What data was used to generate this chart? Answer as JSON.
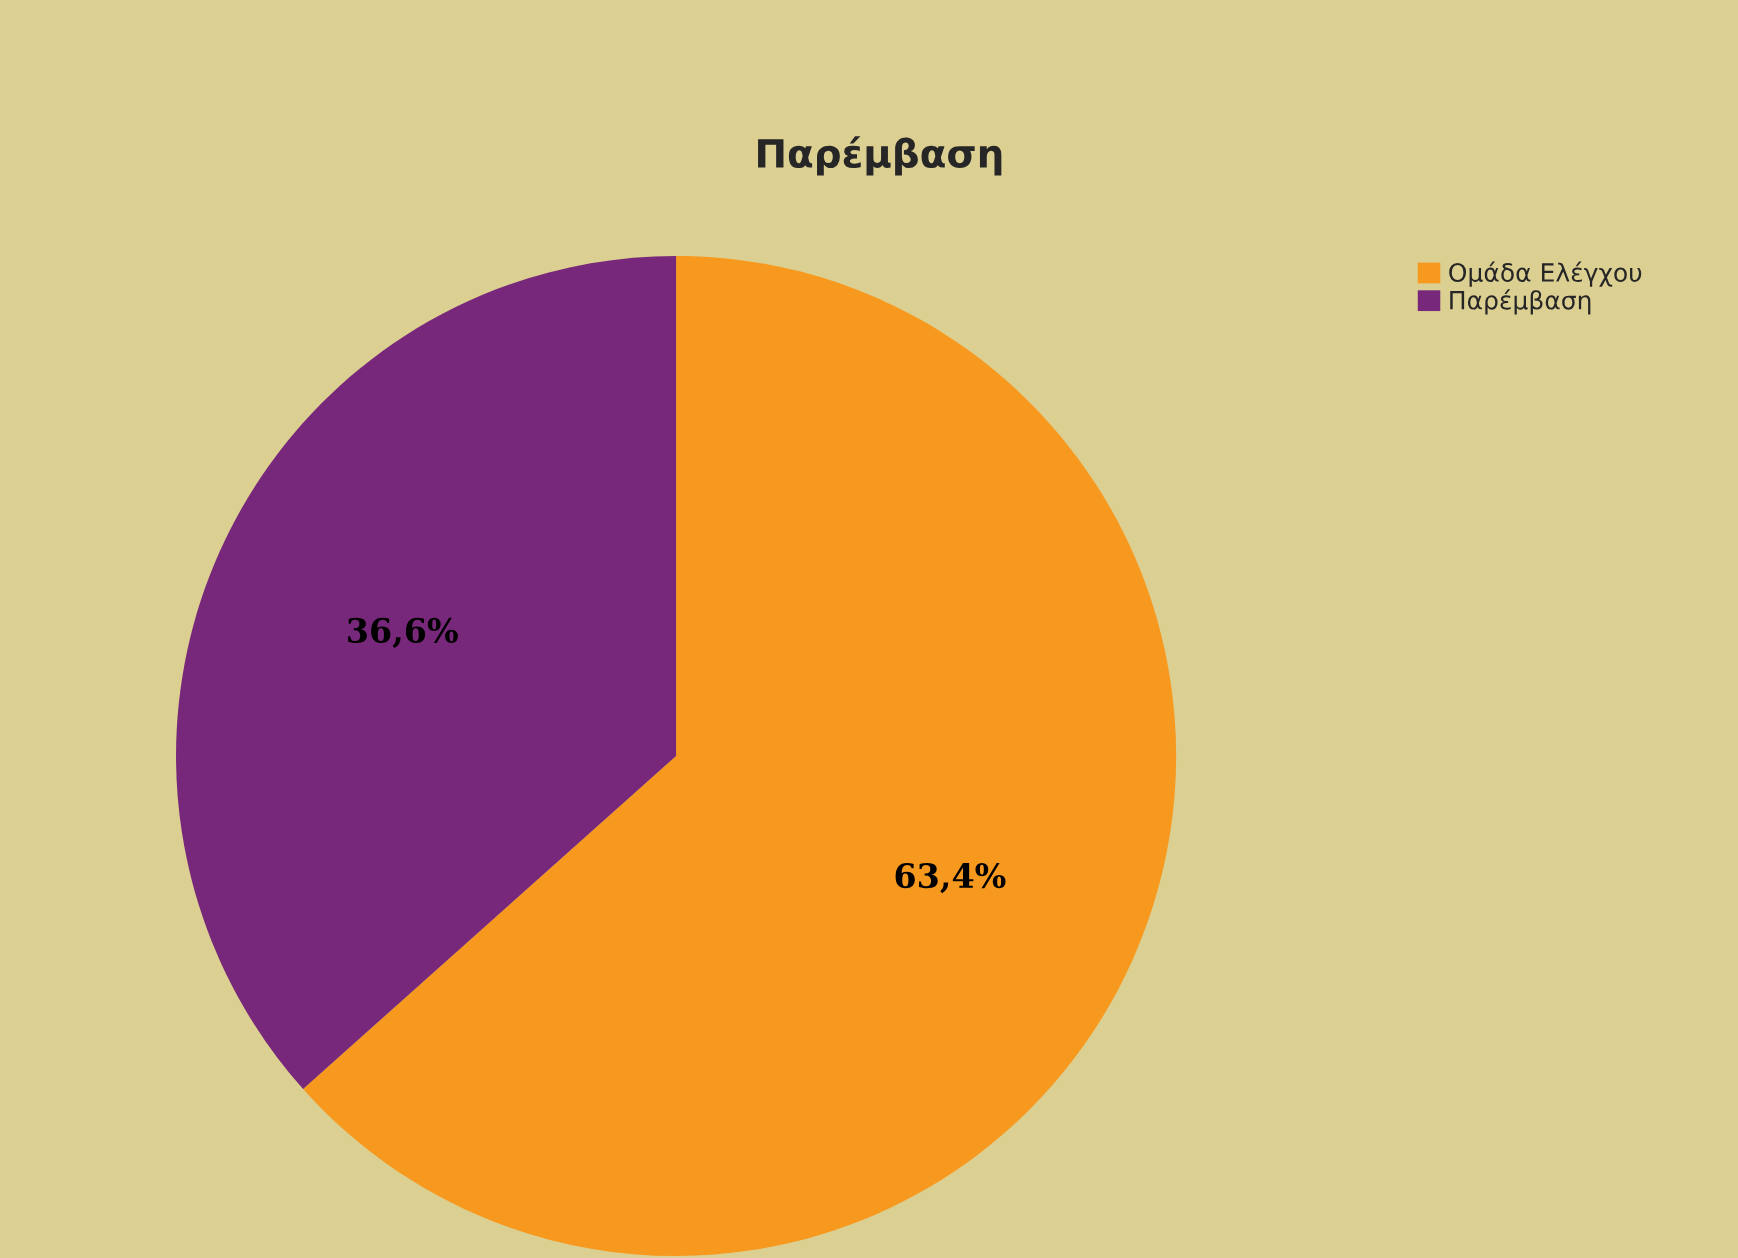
{
  "chart_data": {
    "type": "pie",
    "title": "Παρέμβαση",
    "categories": [
      "Ομάδα Ελέγχου",
      "Παρέμβαση"
    ],
    "values": [
      63.4,
      36.6
    ],
    "colors": [
      "#f7991f",
      "#77287a"
    ],
    "value_labels": [
      "63,4%",
      "36,6%"
    ],
    "legend": "top right"
  }
}
